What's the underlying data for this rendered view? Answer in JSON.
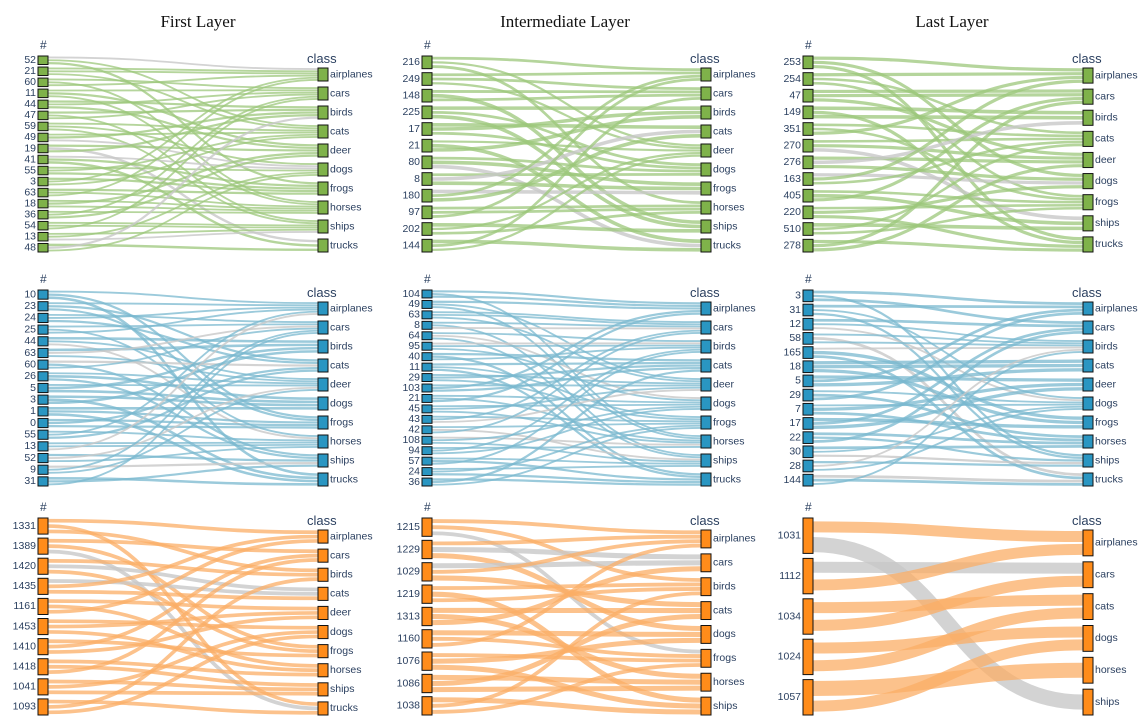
{
  "columns": [
    "First Layer",
    "Intermediate Layer",
    "Last Layer"
  ],
  "colors": {
    "green_node": "#7fb24a",
    "green_link": "#9cc77b",
    "blue_node": "#2a96c2",
    "blue_link": "#7ab8cf",
    "orange_node": "#ff8c1a",
    "orange_link": "#fbae65",
    "gray_link": "#c8c8c8",
    "node_border": "#111111",
    "text": "#2a3f5f"
  },
  "chart_data": [
    {
      "type": "sankey",
      "row": 0,
      "col": 0,
      "left_header": "#",
      "right_header": "class",
      "scheme": "green",
      "left": [
        "52",
        "21",
        "60",
        "11",
        "44",
        "47",
        "59",
        "49",
        "19",
        "41",
        "55",
        "3",
        "63",
        "18",
        "36",
        "54",
        "13",
        "48"
      ],
      "right": [
        "airplanes",
        "cars",
        "birds",
        "cats",
        "deer",
        "dogs",
        "frogs",
        "horses",
        "ships",
        "trucks"
      ]
    },
    {
      "type": "sankey",
      "row": 0,
      "col": 1,
      "left_header": "#",
      "right_header": "class",
      "scheme": "green",
      "left": [
        "216",
        "249",
        "148",
        "225",
        "17",
        "21",
        "80",
        "8",
        "180",
        "97",
        "202",
        "144"
      ],
      "right": [
        "airplanes",
        "cars",
        "birds",
        "cats",
        "deer",
        "dogs",
        "frogs",
        "horses",
        "ships",
        "trucks"
      ]
    },
    {
      "type": "sankey",
      "row": 0,
      "col": 2,
      "left_header": "#",
      "right_header": "class",
      "scheme": "green",
      "left": [
        "253",
        "254",
        "47",
        "149",
        "351",
        "270",
        "276",
        "163",
        "405",
        "220",
        "510",
        "278"
      ],
      "right": [
        "airplanes",
        "cars",
        "birds",
        "cats",
        "deer",
        "dogs",
        "frogs",
        "ships",
        "trucks"
      ]
    },
    {
      "type": "sankey",
      "row": 1,
      "col": 0,
      "left_header": "#",
      "right_header": "class",
      "scheme": "blue",
      "left": [
        "10",
        "23",
        "24",
        "25",
        "44",
        "63",
        "60",
        "26",
        "5",
        "3",
        "1",
        "0",
        "55",
        "13",
        "52",
        "9",
        "31"
      ],
      "right": [
        "airplanes",
        "cars",
        "birds",
        "cats",
        "deer",
        "dogs",
        "frogs",
        "horses",
        "ships",
        "trucks"
      ]
    },
    {
      "type": "sankey",
      "row": 1,
      "col": 1,
      "left_header": "#",
      "right_header": "class",
      "scheme": "blue",
      "left": [
        "104",
        "49",
        "63",
        "8",
        "64",
        "95",
        "40",
        "11",
        "29",
        "103",
        "21",
        "45",
        "43",
        "42",
        "108",
        "94",
        "57",
        "24",
        "36"
      ],
      "right": [
        "airplanes",
        "cars",
        "birds",
        "cats",
        "deer",
        "dogs",
        "frogs",
        "horses",
        "ships",
        "trucks"
      ]
    },
    {
      "type": "sankey",
      "row": 1,
      "col": 2,
      "left_header": "#",
      "right_header": "class",
      "scheme": "blue",
      "left": [
        "3",
        "31",
        "12",
        "58",
        "165",
        "18",
        "5",
        "29",
        "7",
        "17",
        "22",
        "30",
        "28",
        "144"
      ],
      "right": [
        "airplanes",
        "cars",
        "birds",
        "cats",
        "deer",
        "dogs",
        "frogs",
        "horses",
        "ships",
        "trucks"
      ]
    },
    {
      "type": "sankey",
      "row": 2,
      "col": 0,
      "left_header": "#",
      "right_header": "class",
      "scheme": "orange",
      "left": [
        "1331",
        "1389",
        "1420",
        "1435",
        "1161",
        "1453",
        "1410",
        "1418",
        "1041",
        "1093"
      ],
      "right": [
        "airplanes",
        "cars",
        "birds",
        "cats",
        "deer",
        "dogs",
        "frogs",
        "horses",
        "ships",
        "trucks"
      ]
    },
    {
      "type": "sankey",
      "row": 2,
      "col": 1,
      "left_header": "#",
      "right_header": "class",
      "scheme": "orange",
      "left": [
        "1215",
        "1229",
        "1029",
        "1219",
        "1313",
        "1160",
        "1076",
        "1086",
        "1038"
      ],
      "right": [
        "airplanes",
        "cars",
        "birds",
        "cats",
        "dogs",
        "frogs",
        "horses",
        "ships"
      ]
    },
    {
      "type": "sankey",
      "row": 2,
      "col": 2,
      "left_header": "#",
      "right_header": "class",
      "scheme": "orange",
      "left": [
        "1031",
        "1112",
        "1034",
        "1024",
        "1057"
      ],
      "right": [
        "airplanes",
        "cars",
        "cats",
        "dogs",
        "horses",
        "ships"
      ]
    }
  ]
}
